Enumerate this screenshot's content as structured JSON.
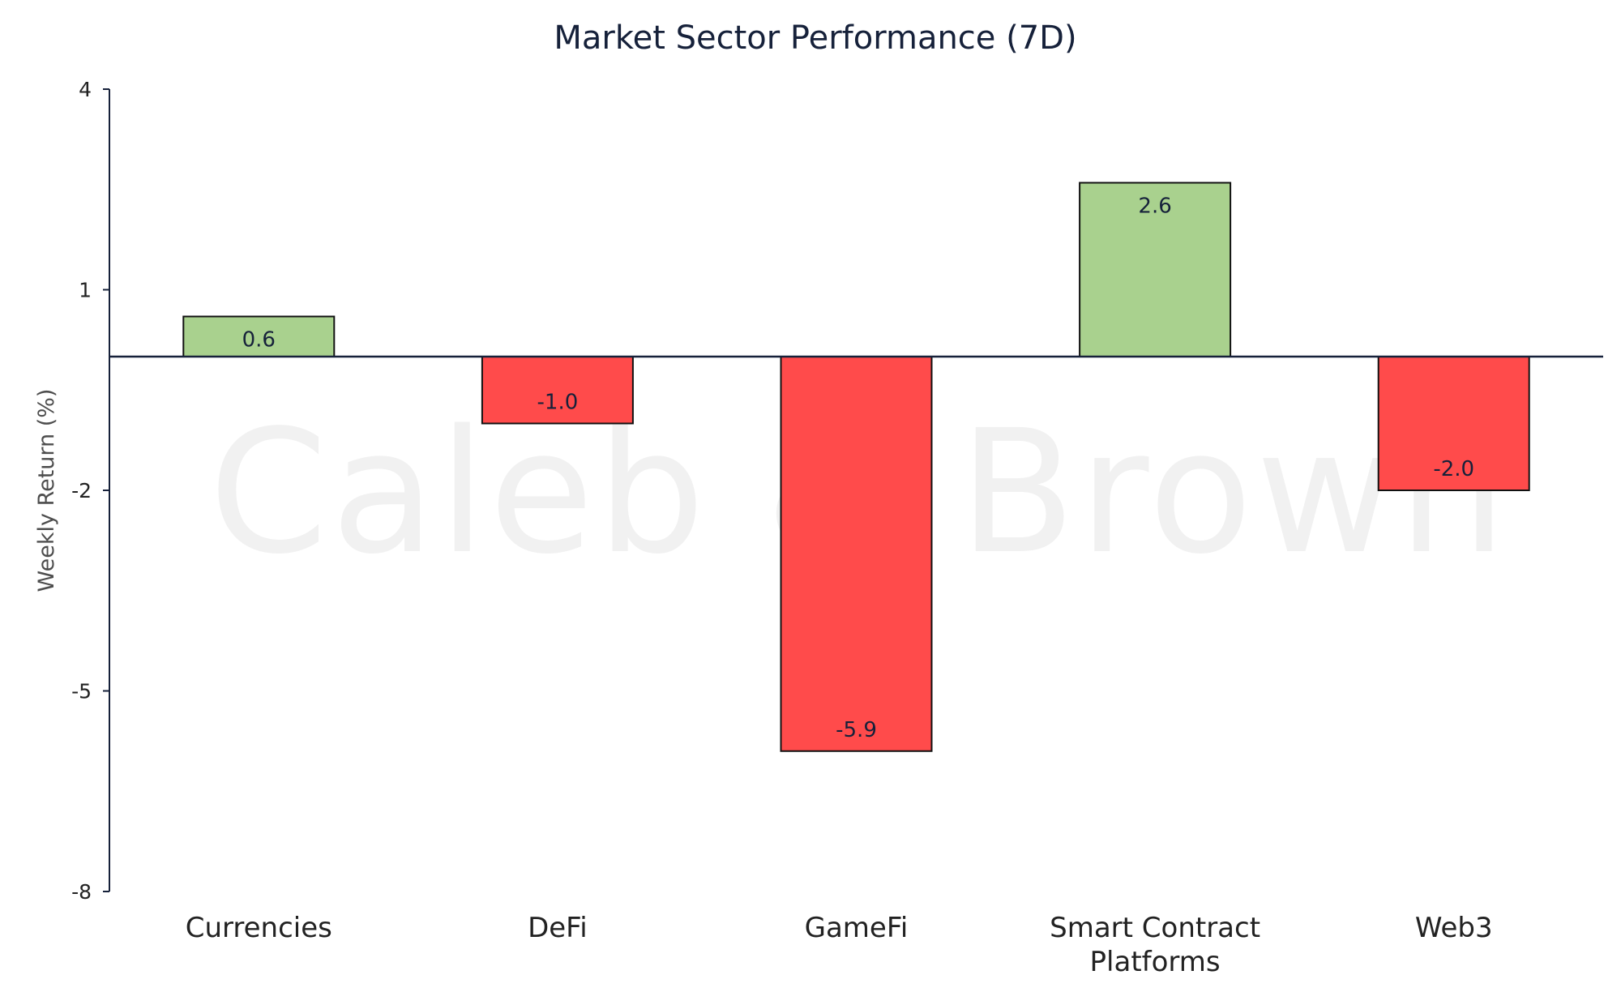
{
  "chart_data": {
    "type": "bar",
    "title": "Market Sector Performance (7D)",
    "xlabel": "",
    "ylabel": "Weekly  Return (%)",
    "ylim": [
      -8,
      4
    ],
    "yticks": [
      "4",
      "1",
      "-2",
      "-5",
      "-8"
    ],
    "ytick_values": [
      4,
      1,
      -2,
      -5,
      -8
    ],
    "categories": [
      "Currencies",
      "DeFi",
      "GameFi",
      "Smart Contract Platforms",
      "Web3"
    ],
    "category_lines": [
      [
        "Currencies"
      ],
      [
        "DeFi"
      ],
      [
        "GameFi"
      ],
      [
        "Smart Contract",
        "Platforms"
      ],
      [
        "Web3"
      ]
    ],
    "values": [
      0.6,
      -1.0,
      -5.9,
      2.6,
      -2.0
    ],
    "value_labels": [
      "0.6",
      "-1.0",
      "-5.9",
      "2.6",
      "-2.0"
    ],
    "grid": false,
    "legend": "none",
    "watermark": "Caleb & Brown",
    "colors": {
      "positive": "#a9d18e",
      "negative": "#ff4b4b",
      "stroke": "#111111",
      "axis": "#16213a",
      "watermark": "#f1f1f1"
    }
  }
}
